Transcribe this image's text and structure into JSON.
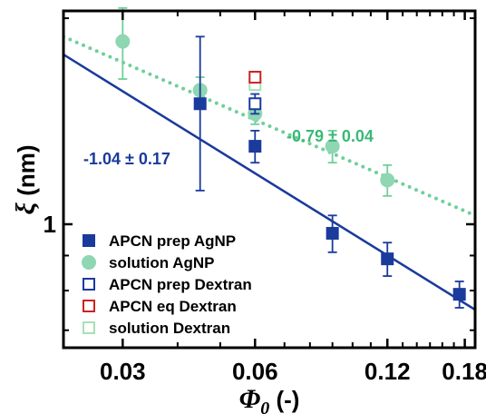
{
  "chart_data": {
    "type": "scatter",
    "xscale": "log",
    "yscale": "log",
    "xlim": [
      0.022,
      0.19
    ],
    "ylim": [
      0.66,
      2.05
    ],
    "xticks": [
      0.03,
      0.06,
      0.12,
      0.18
    ],
    "xtick_labels": [
      "0.03",
      "0.06",
      "0.12",
      "0.18"
    ],
    "yticks": [
      1
    ],
    "ytick_labels": [
      "1"
    ],
    "xlabel": {
      "symbol": "Φ",
      "sub": "0",
      "unit": " (-)"
    },
    "ylabel": {
      "symbol": "ξ",
      "unit": " (nm)"
    },
    "legend_position": "bottom-left",
    "series": [
      {
        "name": "APCN prep AgNP",
        "marker": "square-filled",
        "color": "#1a3a9c",
        "points": [
          {
            "x": 0.045,
            "y": 1.5,
            "err": 0.38
          },
          {
            "x": 0.06,
            "y": 1.3,
            "err": 0.07
          },
          {
            "x": 0.09,
            "y": 0.97,
            "err": 0.06
          },
          {
            "x": 0.12,
            "y": 0.89,
            "err": 0.05
          },
          {
            "x": 0.175,
            "y": 0.79,
            "err": 0.035
          }
        ]
      },
      {
        "name": "solution AgNP",
        "marker": "circle-filled",
        "color": "#8fd6b2",
        "points": [
          {
            "x": 0.03,
            "y": 1.85,
            "err": 0.22
          },
          {
            "x": 0.045,
            "y": 1.57,
            "err": 0.07
          },
          {
            "x": 0.06,
            "y": 1.45,
            "err": 0.05
          },
          {
            "x": 0.09,
            "y": 1.3,
            "err": 0.07
          },
          {
            "x": 0.12,
            "y": 1.16,
            "err": 0.06
          }
        ]
      },
      {
        "name": "APCN prep Dextran",
        "marker": "square-open",
        "color": "#1a3a9c",
        "points": [
          {
            "x": 0.06,
            "y": 1.5,
            "err": 0.05
          }
        ]
      },
      {
        "name": "APCN eq Dextran",
        "marker": "square-open",
        "color": "#cc2222",
        "points": [
          {
            "x": 0.06,
            "y": 1.64,
            "err": 0.03
          }
        ]
      },
      {
        "name": "solution Dextran",
        "marker": "square-open",
        "color": "#a8e0b8",
        "points": [
          {
            "x": 0.06,
            "y": 1.6,
            "err": 0.03
          }
        ]
      }
    ],
    "fits": [
      {
        "label": "-1.04 ± 0.17",
        "style": "solid",
        "color": "#1a3a9c",
        "from": [
          0.022,
          1.77
        ],
        "to": [
          0.19,
          0.75
        ]
      },
      {
        "label": "-0.79 ± 0.04",
        "style": "dotted",
        "color": "#6fcf9a",
        "from": [
          0.022,
          1.88
        ],
        "to": [
          0.19,
          1.03
        ]
      }
    ],
    "grid": false
  }
}
